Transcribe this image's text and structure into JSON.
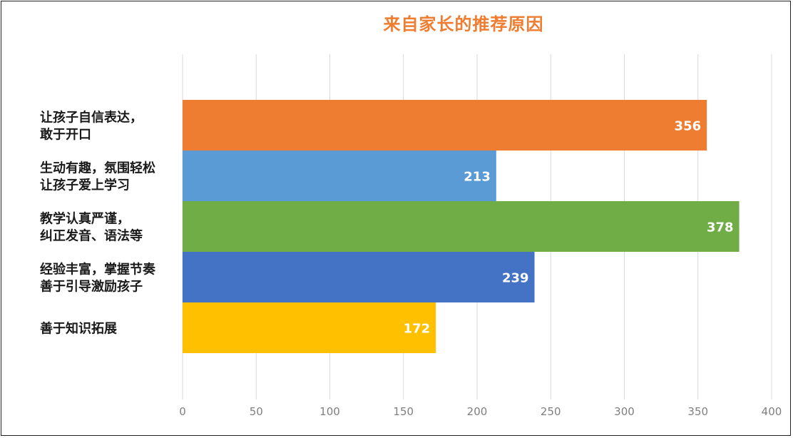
{
  "chart_data": {
    "type": "bar",
    "orientation": "horizontal",
    "title": "来自家长的推荐原因",
    "categories": [
      [
        "让孩子自信表达，",
        "敢于开口"
      ],
      [
        "生动有趣，氛围轻松",
        "让孩子爱上学习"
      ],
      [
        "教学认真严谨，",
        "纠正发音、语法等"
      ],
      [
        "经验丰富，掌握节奏",
        "善于引导激励孩子"
      ],
      [
        "善于知识拓展"
      ]
    ],
    "values": [
      356,
      213,
      378,
      239,
      172
    ],
    "colors": [
      "#ee7d31",
      "#5b9bd5",
      "#70ad47",
      "#4472c4",
      "#ffc000"
    ],
    "xlim": [
      0,
      400
    ],
    "xticks": [
      0,
      50,
      100,
      150,
      200,
      250,
      300,
      350,
      400
    ],
    "grid": true,
    "data_labels": true
  }
}
